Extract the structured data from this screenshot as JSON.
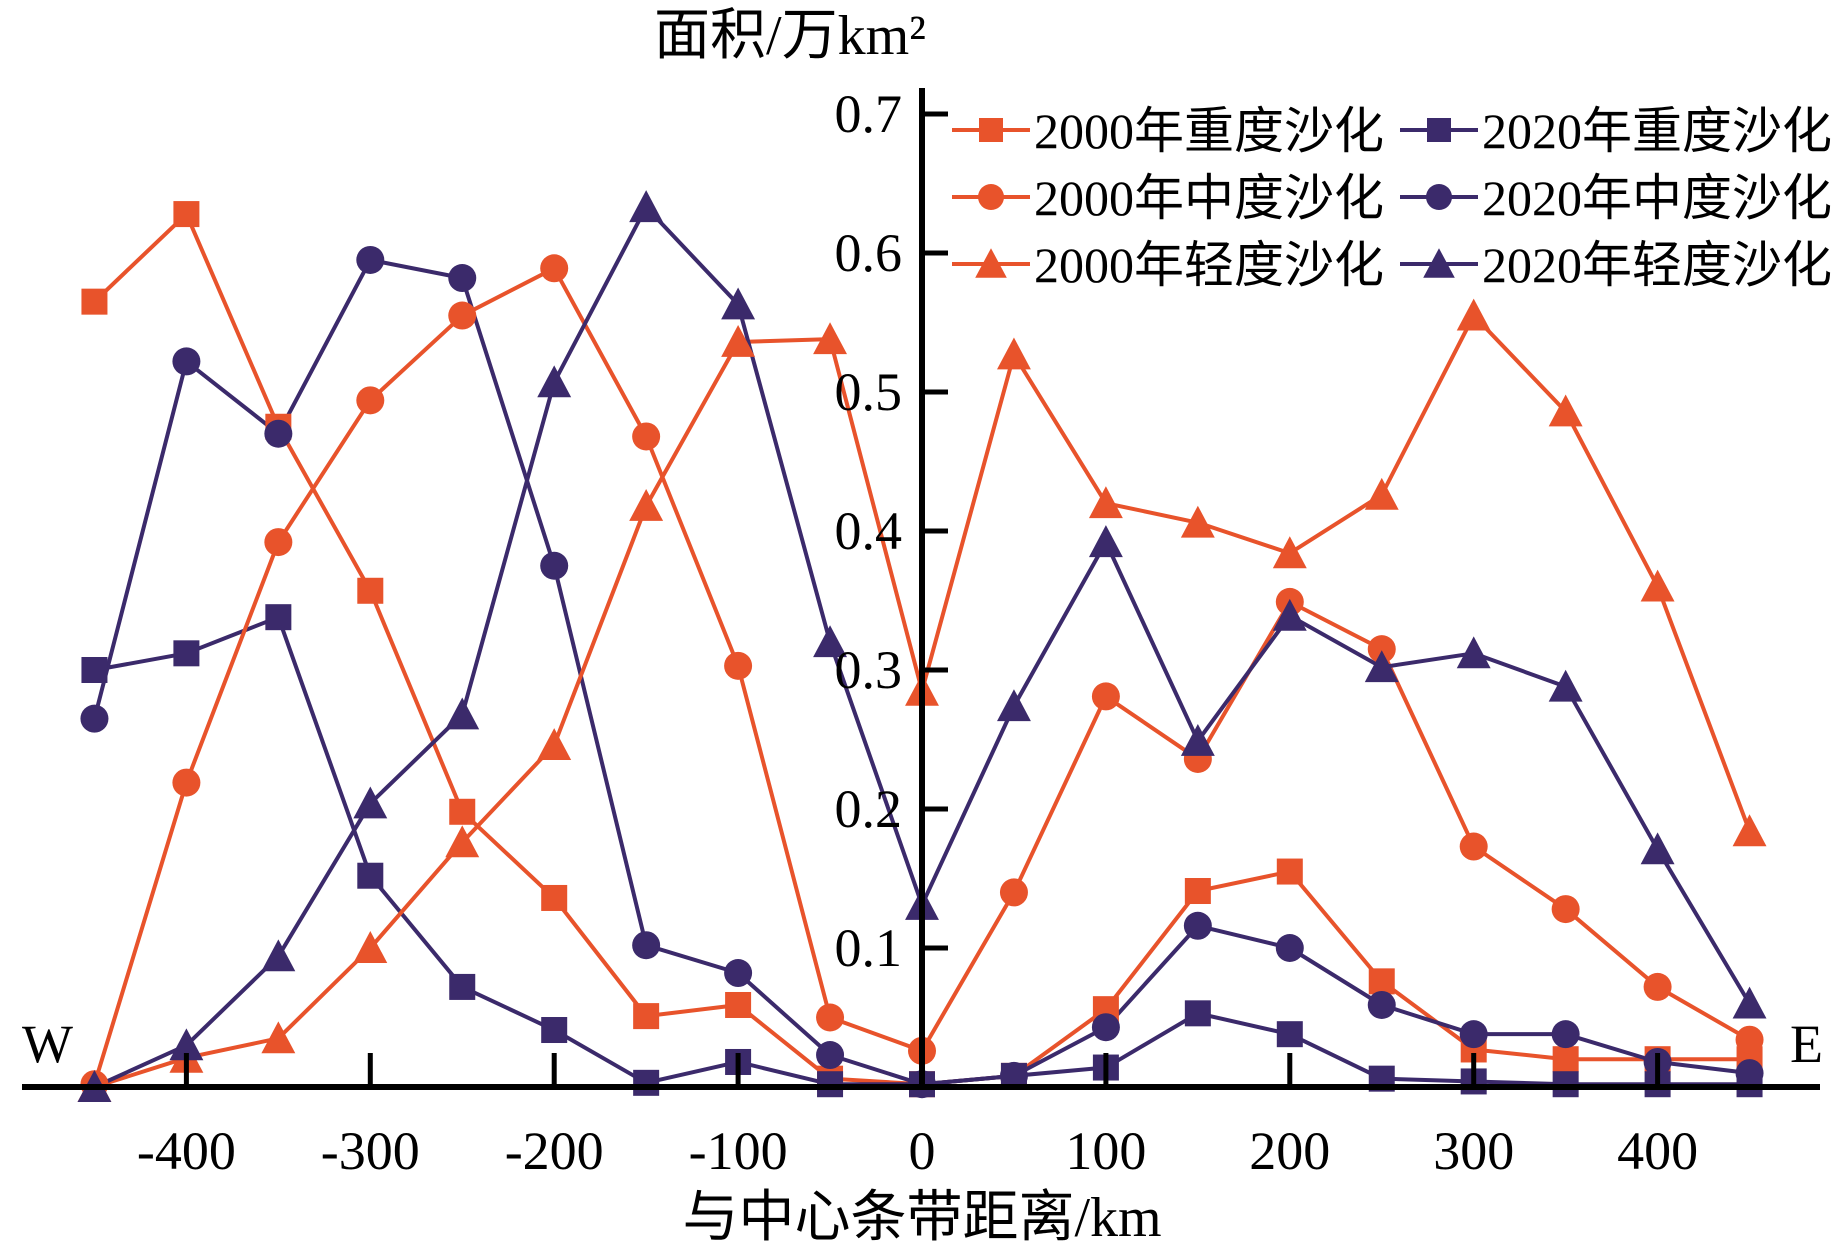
{
  "chart_data": {
    "type": "line",
    "ylabel": "面积/万km²",
    "xlabel": "与中心条带距离/km",
    "direction_labels": {
      "west": "W",
      "east": "E"
    },
    "xlim": [
      -500,
      500
    ],
    "ylim": [
      0,
      0.7
    ],
    "x_ticks": [
      "-400",
      "-300",
      "-200",
      "-100",
      "0",
      "100",
      "200",
      "300",
      "400"
    ],
    "y_ticks": [
      "0.1",
      "0.2",
      "0.3",
      "0.4",
      "0.5",
      "0.6",
      "0.7"
    ],
    "x": [
      -450,
      -400,
      -350,
      -300,
      -250,
      -200,
      -150,
      -100,
      -50,
      0,
      50,
      100,
      150,
      200,
      250,
      300,
      350,
      400,
      450
    ],
    "legend_position": "top-right",
    "colors": {
      "2000": "#e8532b",
      "2020": "#3b2a6b"
    },
    "series": [
      {
        "name": "2000年重度沙化",
        "marker": "square",
        "year": "2000",
        "values": [
          0.565,
          0.628,
          0.475,
          0.357,
          0.198,
          0.136,
          0.051,
          0.059,
          0.006,
          0.002,
          0.008,
          0.056,
          0.141,
          0.155,
          0.076,
          0.027,
          0.02,
          0.02,
          0.02
        ]
      },
      {
        "name": "2020年重度沙化",
        "marker": "square",
        "year": "2020",
        "values": [
          0.3,
          0.312,
          0.338,
          0.152,
          0.072,
          0.041,
          0.003,
          0.018,
          0.002,
          0.002,
          0.008,
          0.014,
          0.053,
          0.038,
          0.006,
          0.004,
          0.002,
          0.002,
          0.002
        ]
      },
      {
        "name": "2000年中度沙化",
        "marker": "circle",
        "year": "2000",
        "values": [
          0.002,
          0.219,
          0.392,
          0.494,
          0.555,
          0.589,
          0.468,
          0.303,
          0.05,
          0.026,
          0.14,
          0.281,
          0.236,
          0.349,
          0.315,
          0.173,
          0.128,
          0.072,
          0.034
        ]
      },
      {
        "name": "2020年中度沙化",
        "marker": "circle",
        "year": "2020",
        "values": [
          0.265,
          0.522,
          0.47,
          0.595,
          0.582,
          0.375,
          0.102,
          0.082,
          0.023,
          0.002,
          0.008,
          0.043,
          0.116,
          0.1,
          0.059,
          0.038,
          0.038,
          0.018,
          0.01
        ]
      },
      {
        "name": "2000年轻度沙化",
        "marker": "triangle",
        "year": "2000",
        "values": [
          0.0,
          0.021,
          0.035,
          0.1,
          0.176,
          0.246,
          0.418,
          0.536,
          0.538,
          0.285,
          0.527,
          0.42,
          0.406,
          0.384,
          0.426,
          0.555,
          0.486,
          0.36,
          0.184
        ]
      },
      {
        "name": "2020年轻度沙化",
        "marker": "triangle",
        "year": "2020",
        "values": [
          0.0,
          0.03,
          0.094,
          0.204,
          0.268,
          0.507,
          0.633,
          0.563,
          0.32,
          0.131,
          0.274,
          0.392,
          0.249,
          0.339,
          0.302,
          0.312,
          0.288,
          0.171,
          0.06
        ]
      }
    ]
  }
}
